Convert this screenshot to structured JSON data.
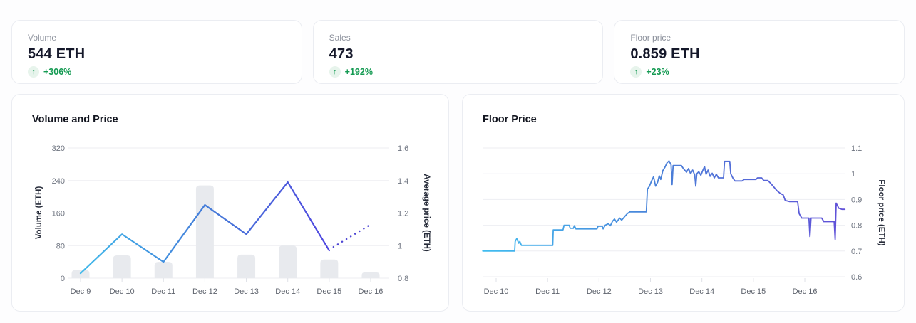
{
  "icons": {
    "trend_up": "↑"
  },
  "colors": {
    "green": "#149a52",
    "green_bg": "#e7f4ec",
    "bar": "#e8eaee",
    "grid": "#edeef2",
    "tick_text": "#6e7480",
    "xlabel_text": "#5f646e",
    "axis_title": "#272c3a",
    "line_gradient": [
      "#41b9ea",
      "#4577d8",
      "#4f46e0"
    ],
    "dotted_line": "#4e46d4",
    "floor_gradient": [
      "#41bdf0",
      "#4a7fd8",
      "#6150d8"
    ]
  },
  "stats": [
    {
      "label": "Volume",
      "value": "544 ETH",
      "change": "+306%"
    },
    {
      "label": "Sales",
      "value": "473",
      "change": "+192%"
    },
    {
      "label": "Floor price",
      "value": "0.859 ETH",
      "change": "+23%"
    }
  ],
  "chart_data": [
    {
      "type": "bar+line",
      "title": "Volume and Price",
      "categories": [
        "Dec 9",
        "Dec 10",
        "Dec 11",
        "Dec 12",
        "Dec 13",
        "Dec 14",
        "Dec 15",
        "Dec 16"
      ],
      "bar_series": {
        "name": "Volume (ETH)",
        "values": [
          20,
          56,
          40,
          228,
          58,
          80,
          46,
          14
        ]
      },
      "line_series": {
        "name": "Average price (ETH)",
        "values": [
          0.83,
          1.07,
          0.9,
          1.25,
          1.07,
          1.39,
          0.97,
          1.13
        ],
        "last_segment_dotted": true
      },
      "y_left": {
        "label": "Volume (ETH)",
        "ticks": [
          320,
          240,
          160,
          80,
          0
        ],
        "min": 0,
        "max": 320
      },
      "y_right": {
        "label": "Average price (ETH)",
        "ticks": [
          "1.6",
          "1.4",
          "1.2",
          "1",
          "0.8"
        ],
        "min": 0.8,
        "max": 1.6
      },
      "grid": true,
      "legend": "none"
    },
    {
      "type": "line",
      "step": true,
      "title": "Floor Price",
      "x_ticks": [
        "Dec 10",
        "Dec 11",
        "Dec 12",
        "Dec 13",
        "Dec 14",
        "Dec 15",
        "Dec 16"
      ],
      "x_tick_days": [
        10,
        11,
        12,
        13,
        14,
        15,
        16
      ],
      "x_range": [
        9.74,
        16.78
      ],
      "y": {
        "label": "Floor price (ETH)",
        "ticks": [
          "1.1",
          "1",
          "0.9",
          "0.8",
          "0.7",
          "0.6"
        ],
        "min": 0.6,
        "max": 1.1
      },
      "grid": true,
      "legend": "none",
      "points": [
        [
          9.74,
          0.7
        ],
        [
          10.36,
          0.7
        ],
        [
          10.37,
          0.737
        ],
        [
          10.4,
          0.748
        ],
        [
          10.44,
          0.73
        ],
        [
          10.46,
          0.737
        ],
        [
          10.49,
          0.722
        ],
        [
          11.1,
          0.722
        ],
        [
          11.11,
          0.782
        ],
        [
          11.3,
          0.782
        ],
        [
          11.32,
          0.8
        ],
        [
          11.42,
          0.8
        ],
        [
          11.44,
          0.788
        ],
        [
          11.5,
          0.788
        ],
        [
          11.52,
          0.798
        ],
        [
          11.55,
          0.786
        ],
        [
          11.96,
          0.786
        ],
        [
          11.98,
          0.796
        ],
        [
          12.06,
          0.796
        ],
        [
          12.08,
          0.786
        ],
        [
          12.12,
          0.8
        ],
        [
          12.18,
          0.806
        ],
        [
          12.22,
          0.798
        ],
        [
          12.26,
          0.815
        ],
        [
          12.3,
          0.824
        ],
        [
          12.34,
          0.812
        ],
        [
          12.4,
          0.828
        ],
        [
          12.44,
          0.82
        ],
        [
          12.5,
          0.834
        ],
        [
          12.55,
          0.845
        ],
        [
          12.6,
          0.852
        ],
        [
          12.92,
          0.852
        ],
        [
          12.94,
          0.94
        ],
        [
          12.98,
          0.952
        ],
        [
          13.02,
          0.972
        ],
        [
          13.06,
          0.988
        ],
        [
          13.1,
          0.952
        ],
        [
          13.14,
          0.968
        ],
        [
          13.17,
          0.992
        ],
        [
          13.2,
          0.978
        ],
        [
          13.24,
          1.012
        ],
        [
          13.28,
          1.025
        ],
        [
          13.32,
          1.042
        ],
        [
          13.36,
          1.05
        ],
        [
          13.4,
          1.035
        ],
        [
          13.42,
          0.958
        ],
        [
          13.44,
          1.032
        ],
        [
          13.6,
          1.032
        ],
        [
          13.64,
          1.02
        ],
        [
          13.7,
          1.006
        ],
        [
          13.74,
          1.02
        ],
        [
          13.78,
          1.0
        ],
        [
          13.82,
          1.014
        ],
        [
          13.86,
          0.995
        ],
        [
          13.88,
          0.952
        ],
        [
          13.9,
          1.0
        ],
        [
          13.94,
          1.008
        ],
        [
          13.98,
          0.994
        ],
        [
          14.02,
          1.014
        ],
        [
          14.05,
          1.028
        ],
        [
          14.08,
          0.998
        ],
        [
          14.12,
          1.014
        ],
        [
          14.16,
          0.99
        ],
        [
          14.2,
          1.002
        ],
        [
          14.24,
          0.984
        ],
        [
          14.28,
          0.998
        ],
        [
          14.32,
          0.984
        ],
        [
          14.42,
          0.984
        ],
        [
          14.44,
          1.048
        ],
        [
          14.54,
          1.048
        ],
        [
          14.56,
          1.0
        ],
        [
          14.6,
          0.984
        ],
        [
          14.64,
          0.972
        ],
        [
          14.78,
          0.972
        ],
        [
          14.82,
          0.978
        ],
        [
          15.05,
          0.978
        ],
        [
          15.08,
          0.984
        ],
        [
          15.16,
          0.984
        ],
        [
          15.2,
          0.974
        ],
        [
          15.28,
          0.974
        ],
        [
          15.34,
          0.962
        ],
        [
          15.4,
          0.948
        ],
        [
          15.46,
          0.934
        ],
        [
          15.52,
          0.924
        ],
        [
          15.58,
          0.918
        ],
        [
          15.62,
          0.896
        ],
        [
          15.7,
          0.892
        ],
        [
          15.86,
          0.892
        ],
        [
          15.89,
          0.845
        ],
        [
          15.94,
          0.828
        ],
        [
          16.08,
          0.828
        ],
        [
          16.1,
          0.756
        ],
        [
          16.12,
          0.828
        ],
        [
          16.33,
          0.828
        ],
        [
          16.37,
          0.814
        ],
        [
          16.57,
          0.814
        ],
        [
          16.59,
          0.745
        ],
        [
          16.61,
          0.886
        ],
        [
          16.66,
          0.866
        ],
        [
          16.72,
          0.862
        ],
        [
          16.78,
          0.862
        ]
      ]
    }
  ]
}
